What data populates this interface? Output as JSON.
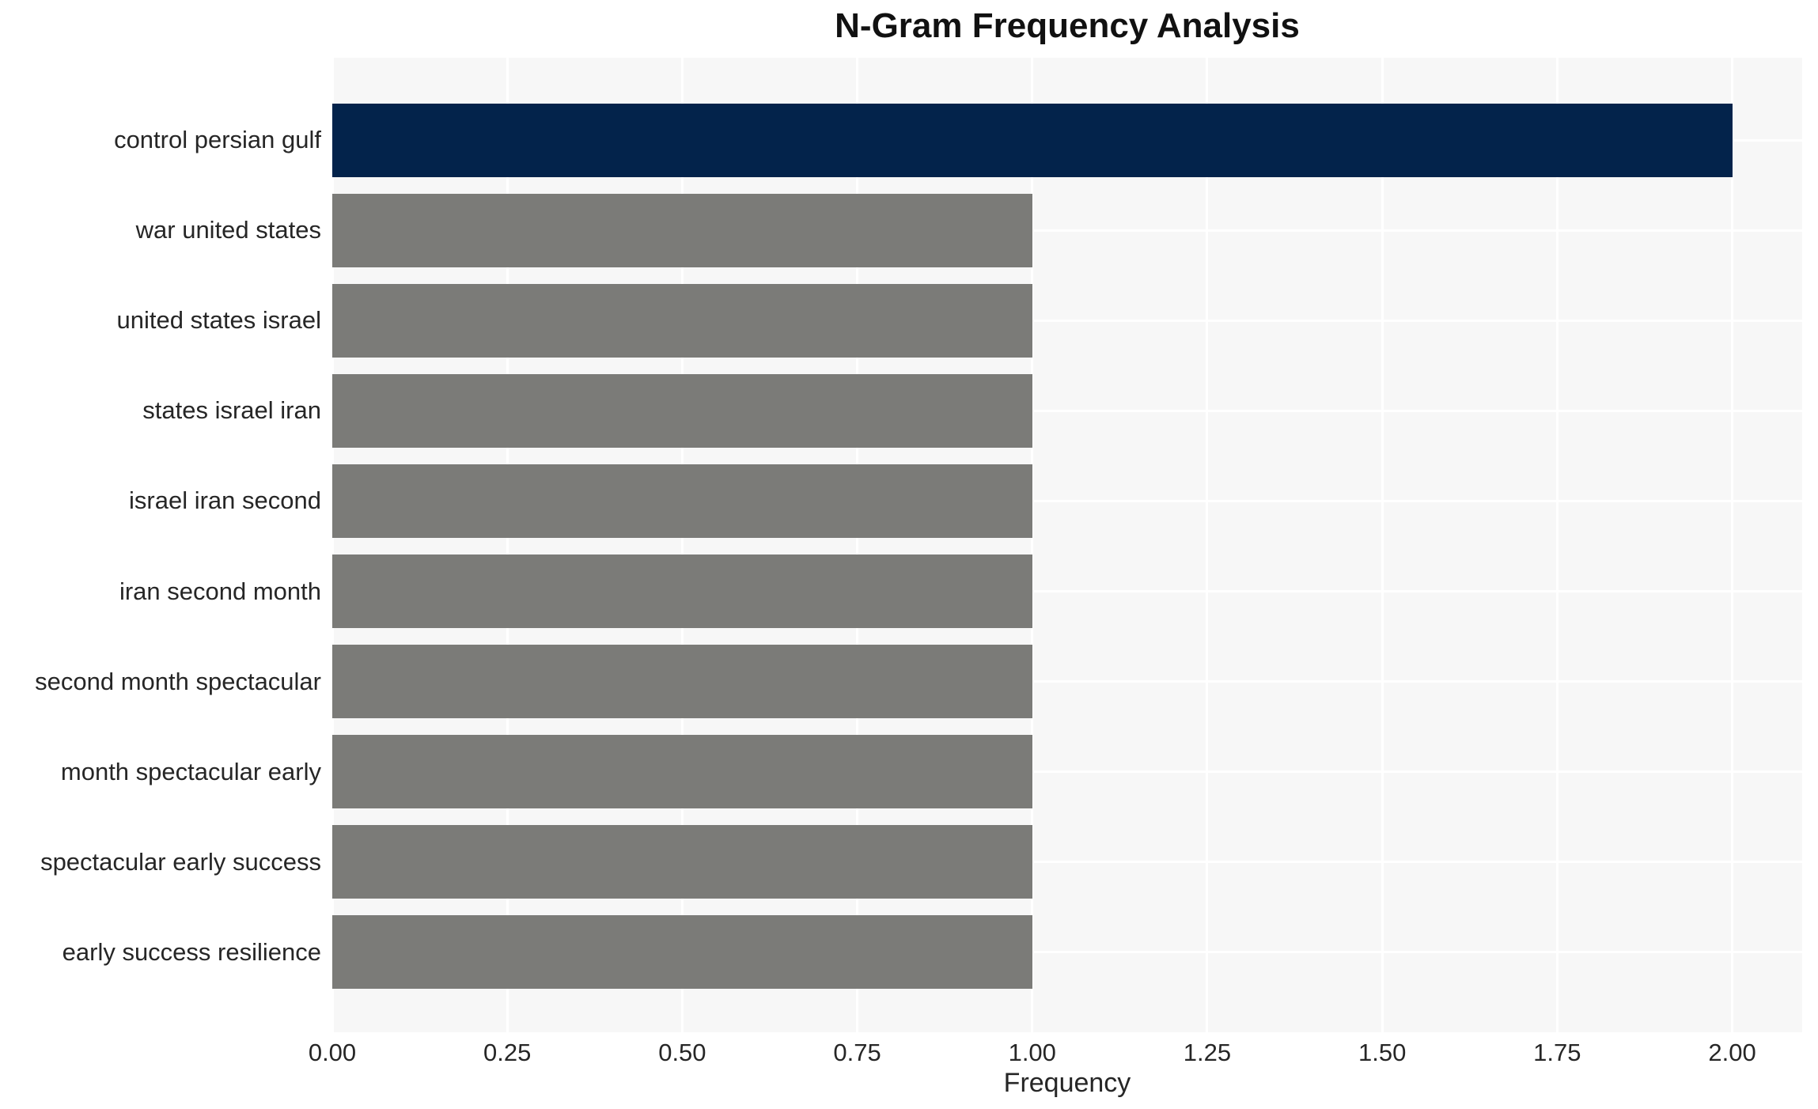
{
  "title": "N-Gram Frequency Analysis",
  "chart_data": {
    "type": "bar",
    "orientation": "horizontal",
    "title": "N-Gram Frequency Analysis",
    "categories": [
      "control persian gulf",
      "war united states",
      "united states israel",
      "states israel iran",
      "israel iran second",
      "iran second month",
      "second month spectacular",
      "month spectacular early",
      "spectacular early success",
      "early success resilience"
    ],
    "values": [
      2.0,
      1.0,
      1.0,
      1.0,
      1.0,
      1.0,
      1.0,
      1.0,
      1.0,
      1.0
    ],
    "bar_colors": [
      "#03234b",
      "#7b7b78",
      "#7b7b78",
      "#7b7b78",
      "#7b7b78",
      "#7b7b78",
      "#7b7b78",
      "#7b7b78",
      "#7b7b78",
      "#7b7b78"
    ],
    "xlabel": "Frequency",
    "ylabel": "",
    "xlim": [
      0,
      2.1
    ],
    "xticks": [
      0.0,
      0.25,
      0.5,
      0.75,
      1.0,
      1.25,
      1.5,
      1.75,
      2.0
    ],
    "xtick_labels": [
      "0.00",
      "0.25",
      "0.50",
      "0.75",
      "1.00",
      "1.25",
      "1.50",
      "1.75",
      "2.00"
    ],
    "grid": true,
    "legend": false,
    "colors": {
      "highlight_bar": "#03234b",
      "default_bar": "#7b7b78",
      "plot_background": "#f7f7f7",
      "gridline": "#ffffff",
      "text": "#262626",
      "title_text": "#111111",
      "figure_background": "#ffffff"
    }
  }
}
